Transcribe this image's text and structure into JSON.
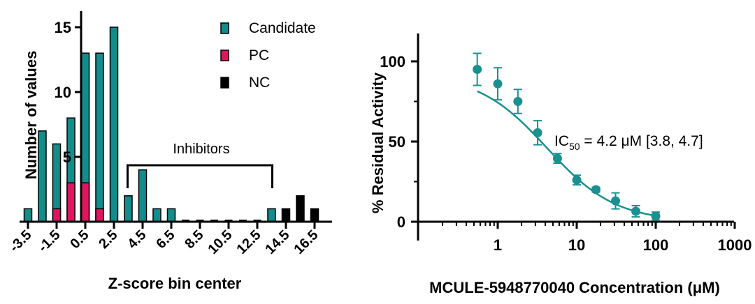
{
  "colors": {
    "candidate": "#138c8c",
    "pc": "#e0155e",
    "nc": "#000000",
    "curve": "#1a9090",
    "axis": "#000000"
  },
  "chart_data": [
    {
      "type": "bar",
      "xlabel": "Z-score bin center",
      "ylabel": "Number of values",
      "ylim": [
        0,
        16
      ],
      "yticks": [
        {
          "v": 0,
          "label": ""
        },
        {
          "v": 5,
          "label": "5"
        },
        {
          "v": 10,
          "label": "10"
        },
        {
          "v": 15,
          "label": "15"
        }
      ],
      "tick_labels": [
        "-3.5",
        "-1.5",
        "0.5",
        "2.5",
        "4.5",
        "6.5",
        "8.5",
        "10.5",
        "12.5",
        "14.5",
        "16.5"
      ],
      "bin_centers": [
        -3.5,
        -2.5,
        -1.5,
        -0.5,
        0.5,
        1.5,
        2.5,
        3.5,
        4.5,
        5.5,
        6.5,
        7.5,
        8.5,
        9.5,
        10.5,
        11.5,
        12.5,
        13.5,
        14.5,
        15.5,
        16.5
      ],
      "series": [
        {
          "name": "Candidate",
          "color_key": "candidate",
          "values": [
            1,
            7,
            6,
            8,
            13,
            13,
            15,
            2,
            4,
            1,
            1,
            0,
            0,
            0,
            0,
            0,
            0,
            1,
            0,
            0,
            0
          ]
        },
        {
          "name": "PC",
          "color_key": "pc",
          "values": [
            0,
            0,
            1,
            3,
            3,
            1,
            0,
            0,
            0,
            0,
            0,
            0,
            0,
            0,
            0,
            0,
            0,
            0,
            0,
            0,
            0
          ]
        },
        {
          "name": "NC",
          "color_key": "nc",
          "values": [
            0,
            0,
            0,
            0,
            0,
            0,
            0,
            0,
            0,
            0,
            0,
            0,
            0,
            0,
            0,
            0,
            0,
            0,
            1,
            2,
            1
          ]
        }
      ],
      "legend_position": "top-right",
      "annotation": {
        "text": "Inhibitors",
        "from": 3.5,
        "to": 13.5
      }
    },
    {
      "type": "scatter",
      "xlabel": "MCULE-5948770040 Concentration (μM)",
      "ylabel": "% Residual Activity",
      "xscale": "log",
      "xlim": [
        0.1,
        1000
      ],
      "ylim": [
        -10,
        115
      ],
      "xticks": [
        {
          "v": 1,
          "label": "1"
        },
        {
          "v": 10,
          "label": "10"
        },
        {
          "v": 100,
          "label": "100"
        },
        {
          "v": 1000,
          "label": "1000"
        }
      ],
      "yticks": [
        {
          "v": 0,
          "label": "0"
        },
        {
          "v": 50,
          "label": "50"
        },
        {
          "v": 100,
          "label": "100"
        }
      ],
      "points": [
        {
          "x": 0.55,
          "y": 95,
          "err": 10
        },
        {
          "x": 1.0,
          "y": 86,
          "err": 10
        },
        {
          "x": 1.8,
          "y": 75,
          "err": 7.5
        },
        {
          "x": 3.2,
          "y": 55.5,
          "err": 7.5
        },
        {
          "x": 5.7,
          "y": 39.5,
          "err": 3
        },
        {
          "x": 10,
          "y": 26,
          "err": 3
        },
        {
          "x": 17.5,
          "y": 20,
          "err": 1.5
        },
        {
          "x": 31,
          "y": 13,
          "err": 5
        },
        {
          "x": 56,
          "y": 6.5,
          "err": 3.5
        },
        {
          "x": 100,
          "y": 3.5,
          "err": 2.5
        }
      ],
      "fit": {
        "top": 92,
        "bottom": 0,
        "ic50": 4.2,
        "hill": 1
      },
      "annotation": {
        "prefix": "IC",
        "sub": "50",
        "suffix": " = 4.2 μM [3.8, 4.7]"
      }
    }
  ]
}
